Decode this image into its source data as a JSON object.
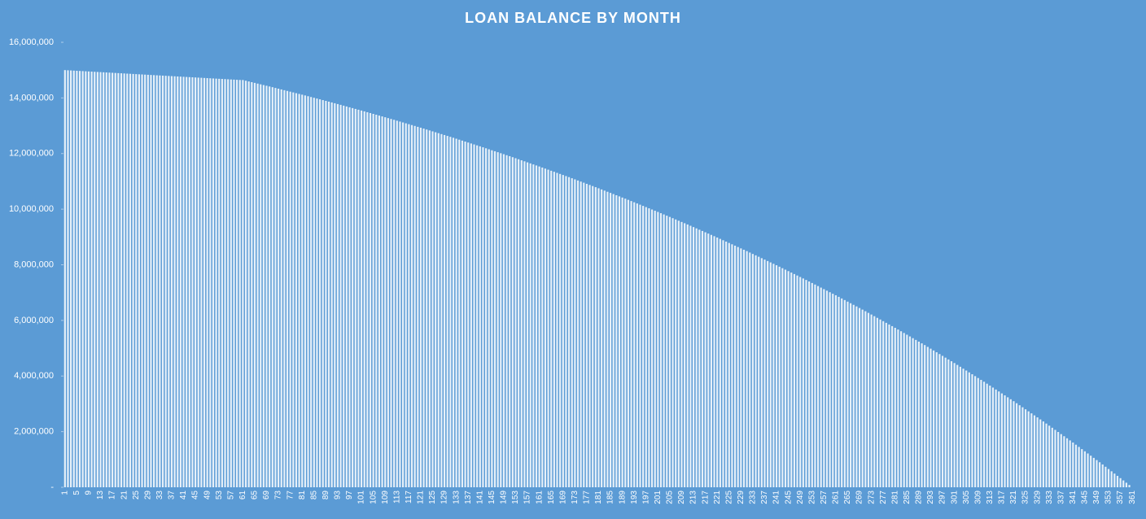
{
  "chart_data": {
    "type": "bar",
    "title": "LOAN BALANCE BY MONTH",
    "categories": [
      "1",
      null,
      null,
      null,
      "5",
      null,
      null,
      null,
      "9",
      null,
      null,
      null,
      "13",
      null,
      null,
      null,
      "17",
      null,
      null,
      null,
      "21",
      null,
      null,
      null,
      "25",
      null,
      null,
      null,
      "29",
      null,
      null,
      null,
      "33",
      null,
      null,
      null,
      "37",
      null,
      null,
      null,
      "41",
      null,
      null,
      null,
      "45",
      null,
      null,
      null,
      "49",
      null,
      null,
      null,
      "53",
      null,
      null,
      null,
      "57",
      null,
      null,
      null,
      "61",
      null,
      null,
      null,
      "65",
      null,
      null,
      null,
      "69",
      null,
      null,
      null,
      "73",
      null,
      null,
      null,
      "77",
      null,
      null,
      null,
      "81",
      null,
      null,
      null,
      "85",
      null,
      null,
      null,
      "89",
      null,
      null,
      null,
      "93",
      null,
      null,
      null,
      "97",
      null,
      null,
      null,
      "101",
      null,
      null,
      null,
      "105",
      null,
      null,
      null,
      "109",
      null,
      null,
      null,
      "113",
      null,
      null,
      null,
      "117",
      null,
      null,
      null,
      "121",
      null,
      null,
      null,
      "125",
      null,
      null,
      null,
      "129",
      null,
      null,
      null,
      "133",
      null,
      null,
      null,
      "137",
      null,
      null,
      null,
      "141",
      null,
      null,
      null,
      "145",
      null,
      null,
      null,
      "149",
      null,
      null,
      null,
      "153",
      null,
      null,
      null,
      "157",
      null,
      null,
      null,
      "161",
      null,
      null,
      null,
      "165",
      null,
      null,
      null,
      "169",
      null,
      null,
      null,
      "173",
      null,
      null,
      null,
      "177",
      null,
      null,
      null,
      "181",
      null,
      null,
      null,
      "185",
      null,
      null,
      null,
      "189",
      null,
      null,
      null,
      "193",
      null,
      null,
      null,
      "197",
      null,
      null,
      null,
      "201",
      null,
      null,
      null,
      "205",
      null,
      null,
      null,
      "209",
      null,
      null,
      null,
      "213",
      null,
      null,
      null,
      "217",
      null,
      null,
      null,
      "221",
      null,
      null,
      null,
      "225",
      null,
      null,
      null,
      "229",
      null,
      null,
      null,
      "233",
      null,
      null,
      null,
      "237",
      null,
      null,
      null,
      "241",
      null,
      null,
      null,
      "245",
      null,
      null,
      null,
      "249",
      null,
      null,
      null,
      "253",
      null,
      null,
      null,
      "257",
      null,
      null,
      null,
      "261",
      null,
      null,
      null,
      "265",
      null,
      null,
      null,
      "269",
      null,
      null,
      null,
      "273",
      null,
      null,
      null,
      "277",
      null,
      null,
      null,
      "281",
      null,
      null,
      null,
      "285",
      null,
      null,
      null,
      "289",
      null,
      null,
      null,
      "293",
      null,
      null,
      null,
      "297",
      null,
      null,
      null,
      "301",
      null,
      null,
      null,
      "305",
      null,
      null,
      null,
      "309",
      null,
      null,
      null,
      "313",
      null,
      null,
      null,
      "317",
      null,
      null,
      null,
      "321",
      null,
      null,
      null,
      "325",
      null,
      null,
      null,
      "329",
      null,
      null,
      null,
      "333",
      null,
      null,
      null,
      "337",
      null,
      null,
      null,
      "341",
      null,
      null,
      null,
      "345",
      null,
      null,
      null,
      "349",
      null,
      null,
      null,
      "353",
      null,
      null,
      null,
      "357",
      null,
      null,
      null,
      "361"
    ],
    "values": [
      15000000,
      14994000,
      14988000,
      14982000,
      14976000,
      14970000,
      14964000,
      14958000,
      14952000,
      14946000,
      14940000,
      14934000,
      14928000,
      14922000,
      14916000,
      14910000,
      14904000,
      14898000,
      14892000,
      14886000,
      14880000,
      14874000,
      14868000,
      14862000,
      14856000,
      14850000,
      14844000,
      14838000,
      14832000,
      14826000,
      14820000,
      14814000,
      14808000,
      14802000,
      14796000,
      14790000,
      14784000,
      14778000,
      14772000,
      14766000,
      14760000,
      14754000,
      14748000,
      14742000,
      14736000,
      14730000,
      14724000,
      14718000,
      14712000,
      14706000,
      14700000,
      14694000,
      14688000,
      14682000,
      14676000,
      14670000,
      14664000,
      14658000,
      14652000,
      14646000,
      14644000,
      14618000,
      14592000,
      14567000,
      14541000,
      14515000,
      14489000,
      14463000,
      14438000,
      14412000,
      14386000,
      14359000,
      14332000,
      14305000,
      14278000,
      14252000,
      14225000,
      14198000,
      14171000,
      14144000,
      14117000,
      14089000,
      14061000,
      14033000,
      14005000,
      13978000,
      13950000,
      13922000,
      13894000,
      13866000,
      13838000,
      13809000,
      13780000,
      13751000,
      13722000,
      13693000,
      13663000,
      13634000,
      13605000,
      13576000,
      13547000,
      13517000,
      13486000,
      13456000,
      13426000,
      13396000,
      13365000,
      13335000,
      13305000,
      13274000,
      13244000,
      13213000,
      13181000,
      13150000,
      13118000,
      13087000,
      13056000,
      13024000,
      12993000,
      12961000,
      12930000,
      12897000,
      12864000,
      12831000,
      12798000,
      12766000,
      12733000,
      12700000,
      12667000,
      12634000,
      12601000,
      12567000,
      12533000,
      12499000,
      12465000,
      12431000,
      12396000,
      12362000,
      12328000,
      12294000,
      12260000,
      12225000,
      12189000,
      12154000,
      12118000,
      12083000,
      12048000,
      12012000,
      11977000,
      11941000,
      11906000,
      11869000,
      11832000,
      11795000,
      11758000,
      11721000,
      11683000,
      11646000,
      11609000,
      11572000,
      11535000,
      11497000,
      11458000,
      11420000,
      11382000,
      11344000,
      11305000,
      11267000,
      11229000,
      11190000,
      11152000,
      11112000,
      11072000,
      11032000,
      10992000,
      10952000,
      10911000,
      10871000,
      10831000,
      10791000,
      10751000,
      10709000,
      10668000,
      10626000,
      10585000,
      10543000,
      10501000,
      10460000,
      10418000,
      10377000,
      10335000,
      10292000,
      10248000,
      10205000,
      10161000,
      10118000,
      10075000,
      10031000,
      9988000,
      9944000,
      9901000,
      9856000,
      9811000,
      9766000,
      9721000,
      9676000,
      9630000,
      9585000,
      9540000,
      9495000,
      9450000,
      9403000,
      9356000,
      9309000,
      9262000,
      9216000,
      9169000,
      9122000,
      9075000,
      9028000,
      8981000,
      8932000,
      8883000,
      8834000,
      8785000,
      8737000,
      8688000,
      8639000,
      8590000,
      8541000,
      8492000,
      8441000,
      8390000,
      8340000,
      8289000,
      8238000,
      8187000,
      8136000,
      8086000,
      8035000,
      7984000,
      7931000,
      7878000,
      7825000,
      7772000,
      7720000,
      7667000,
      7614000,
      7561000,
      7508000,
      7455000,
      7400000,
      7345000,
      7290000,
      7235000,
      7180000,
      7124000,
      7069000,
      7014000,
      6959000,
      6904000,
      6847000,
      6789000,
      6732000,
      6675000,
      6618000,
      6560000,
      6503000,
      6446000,
      6388000,
      6331000,
      6271000,
      6212000,
      6152000,
      6092000,
      6033000,
      5973000,
      5913000,
      5853000,
      5794000,
      5734000,
      5672000,
      5610000,
      5548000,
      5486000,
      5424000,
      5361000,
      5299000,
      5237000,
      5175000,
      5113000,
      5048000,
      4984000,
      4919000,
      4855000,
      4790000,
      4725000,
      4661000,
      4596000,
      4532000,
      4467000,
      4400000,
      4333000,
      4265000,
      4198000,
      4131000,
      4064000,
      3997000,
      3929000,
      3862000,
      3795000,
      3725000,
      3655000,
      3585000,
      3515000,
      3445000,
      3375000,
      3305000,
      3235000,
      3165000,
      3095000,
      3022000,
      2949000,
      2877000,
      2804000,
      2731000,
      2658000,
      2585000,
      2513000,
      2440000,
      2367000,
      2291000,
      2215000,
      2140000,
      2064000,
      1988000,
      1912000,
      1836000,
      1761000,
      1685000,
      1609000,
      1530000,
      1451000,
      1372000,
      1293000,
      1215000,
      1136000,
      1057000,
      978000,
      899000,
      820000,
      738000,
      656000,
      574000,
      492000,
      410000,
      328000,
      246000,
      164000,
      82000,
      0
    ],
    "color": "#ffffff",
    "ylim": [
      0,
      16000000
    ],
    "yticks": [
      {
        "value": 0,
        "label": "-"
      },
      {
        "value": 2000000,
        "label": "2,000,000"
      },
      {
        "value": 4000000,
        "label": "4,000,000"
      },
      {
        "value": 6000000,
        "label": "6,000,000"
      },
      {
        "value": 8000000,
        "label": "8,000,000"
      },
      {
        "value": 10000000,
        "label": "10,000,000"
      },
      {
        "value": 12000000,
        "label": "12,000,000"
      },
      {
        "value": 14000000,
        "label": "14,000,000"
      },
      {
        "value": 16000000,
        "label": "16,000,000"
      }
    ]
  }
}
